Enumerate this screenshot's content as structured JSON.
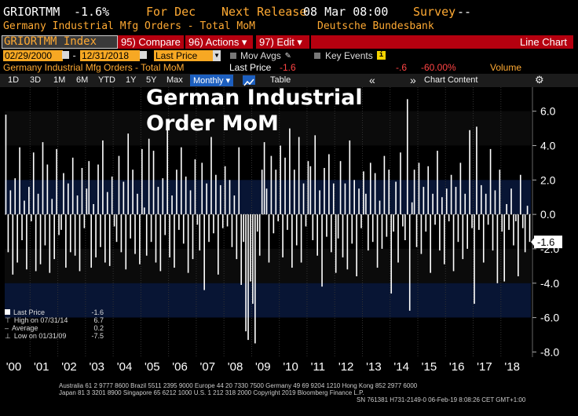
{
  "header": {
    "ticker": "GRIORTMM",
    "value": "-1.6%",
    "period": "For Dec",
    "next_release_label": "Next Release",
    "next_release": "08 Mar 08:00",
    "survey_label": "Survey",
    "survey": "--",
    "series_name": "Germany Industrial Mfg Orders - Total MoM",
    "source": "Deutsche Bundesbank"
  },
  "toolbar": {
    "security": "GRIORTMM Index",
    "compare": "95) Compare",
    "actions": "96) Actions ▾",
    "edit": "97) Edit ▾",
    "chart_type": "Line Chart"
  },
  "settings": {
    "start_date": "02/29/2000",
    "end_date": "12/31/2018",
    "field": "Last Price",
    "mov_avgs": "Mov Avgs",
    "key_events": "Key Events"
  },
  "subheader": {
    "series": "Germany Industrial Mfg Orders - Total MoM",
    "last_price_label": "Last Price",
    "last_price": "-1.6",
    "change": "-.6",
    "change_pct": "-60.00%",
    "volume": "Volume"
  },
  "ranges": {
    "items": [
      "1D",
      "3D",
      "1M",
      "6M",
      "YTD",
      "1Y",
      "5Y",
      "Max"
    ],
    "frequency": "Monthly ▾",
    "table": "Table",
    "chart_content": "Chart Content"
  },
  "legend": {
    "last_price_label": "Last Price",
    "last_price": "-1.6",
    "high_label": "High on 07/31/14",
    "high": "6.7",
    "average_label": "Average",
    "average": "0.2",
    "low_label": "Low on 01/31/09",
    "low": "-7.5"
  },
  "footer": {
    "line1": "Australia 61 2 9777 8600 Brazil 5511 2395 9000 Europe 44 20 7330 7500 Germany 49 69 9204 1210 Hong Kong 852 2977 6000",
    "line2": "Japan 81 3 3201 8900         Singapore 65 6212 1000         U.S. 1 212 318 2000                Copyright 2019 Bloomberg Finance L.P.",
    "line3": "SN 761381 H731-2149-0 06-Feb-19  8:08:26 CET  GMT+1:00"
  },
  "colors": {
    "orange": "#ffaa33",
    "red": "#b5000f",
    "bar": "#ffffff",
    "bg": "#000000",
    "band": "#0c1432"
  },
  "chart_data": {
    "type": "bar",
    "title": "German Industrial Order MoM",
    "x_tick_labels": [
      "'00",
      "'01",
      "'02",
      "'03",
      "'04",
      "'05",
      "'06",
      "'07",
      "'08",
      "'09",
      "'10",
      "'11",
      "'12",
      "'13",
      "'14",
      "'15",
      "'16",
      "'17",
      "'18"
    ],
    "y_ticks": [
      6.0,
      4.0,
      2.0,
      0.0,
      -2.0,
      -4.0,
      -6.0,
      -8.0
    ],
    "ylim": [
      -8.3,
      7.4
    ],
    "last_value_label": "-1.6",
    "start": "2000-02",
    "end": "2018-12",
    "values": [
      5.8,
      -2.2,
      1.4,
      -3.5,
      2.1,
      -2.8,
      3.9,
      -1.5,
      0.8,
      -3.2,
      1.6,
      -0.4,
      3.6,
      -3.3,
      1.2,
      -2.9,
      4.2,
      -1.8,
      2.9,
      -3.4,
      0.9,
      -2.6,
      3.8,
      -1.2,
      -0.9,
      2.4,
      -3.1,
      1.8,
      -2.2,
      3.3,
      -2.4,
      1.1,
      -3.3,
      2.7,
      -0.8,
      1.5,
      3.1,
      -3.1,
      0.6,
      -2.5,
      2.9,
      -1.9,
      4.3,
      -2.8,
      1.3,
      -3.0,
      2.2,
      -0.7,
      -1.6,
      3.4,
      -2.2,
      1.9,
      -3.2,
      4.7,
      -1.4,
      2.6,
      -2.3,
      1.2,
      -2.9,
      3.8,
      0.4,
      -2.4,
      4.4,
      -1.6,
      3.7,
      -2.8,
      1.6,
      -3.3,
      2.1,
      -1.2,
      4.9,
      -2.5,
      1.1,
      -3.1,
      2.6,
      -0.9,
      3.9,
      -1.7,
      2.2,
      -3.4,
      1.4,
      -2.6,
      3.2,
      -0.6,
      -2.1,
      3.0,
      -4.4,
      1.8,
      -1.6,
      4.5,
      -1.1,
      2.3,
      -3.5,
      1.7,
      -0.8,
      2.8,
      -0.7,
      2.0,
      -1.9,
      1.1,
      -2.6,
      3.9,
      -4.1,
      -1.6,
      -6.8,
      -7.3,
      -3.9,
      -5.2,
      -7.5,
      -1.0,
      -2.4,
      2.6,
      4.2,
      1.5,
      -2.8,
      3.4,
      -1.1,
      2.6,
      -0.4,
      4.0,
      -2.5,
      3.3,
      -0.9,
      5.0,
      -3.1,
      2.6,
      -1.8,
      4.5,
      -2.8,
      1.8,
      -0.7,
      3.1,
      2.8,
      -1.5,
      4.6,
      -2.4,
      1.4,
      -4.2,
      2.7,
      -1.3,
      3.5,
      -2.2,
      1.8,
      -3.4,
      -1.4,
      3.1,
      -2.5,
      1.8,
      -3.2,
      4.3,
      -1.7,
      2.0,
      -3.6,
      1.5,
      -0.8,
      2.5,
      1.2,
      -2.1,
      3.0,
      -1.6,
      2.4,
      -3.1,
      0.8,
      -2.0,
      3.4,
      -1.3,
      2.6,
      -4.6,
      -1.0,
      1.9,
      -2.8,
      3.6,
      -0.7,
      -1.5,
      6.7,
      -5.6,
      0.7,
      2.6,
      -1.9,
      3.0,
      -2.3,
      1.6,
      -1.0,
      2.8,
      -3.4,
      1.2,
      -0.6,
      3.7,
      -2.1,
      1.0,
      -2.9,
      1.5,
      -0.4,
      2.3,
      -3.3,
      1.6,
      -1.6,
      3.0,
      -2.6,
      1.2,
      -2.0,
      4.9,
      -0.8,
      -5.2,
      5.1,
      -0.9,
      1.7,
      -2.8,
      1.2,
      -0.6,
      3.8,
      -2.1,
      1.4,
      -4.0,
      2.6,
      -1.0,
      -3.9,
      0.6,
      -0.9,
      1.5,
      -1.8,
      -0.4,
      -3.6,
      2.3,
      -0.8,
      -2.2,
      0.5,
      -1.6
    ]
  }
}
